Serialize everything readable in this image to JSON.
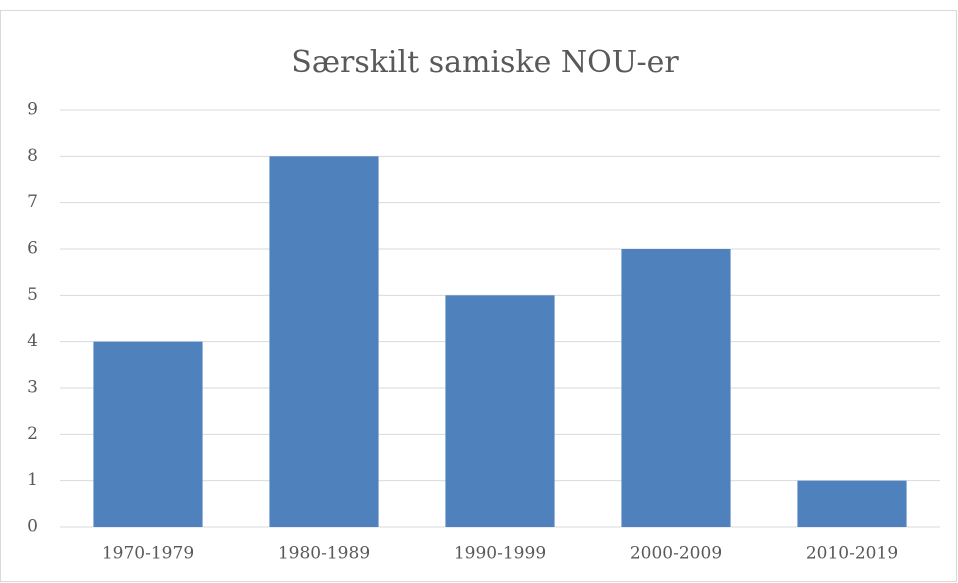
{
  "chart_data": {
    "type": "bar",
    "title": "Særskilt samiske NOU-er",
    "categories": [
      "1970-1979",
      "1980-1989",
      "1990-1999",
      "2000-2009",
      "2010-2019"
    ],
    "values": [
      4,
      8,
      5,
      6,
      1
    ],
    "color": "#4f81bd",
    "ylim": [
      0,
      9
    ],
    "yticks": [
      0,
      1,
      2,
      3,
      4,
      5,
      6,
      7,
      8,
      9
    ],
    "grid": true
  }
}
